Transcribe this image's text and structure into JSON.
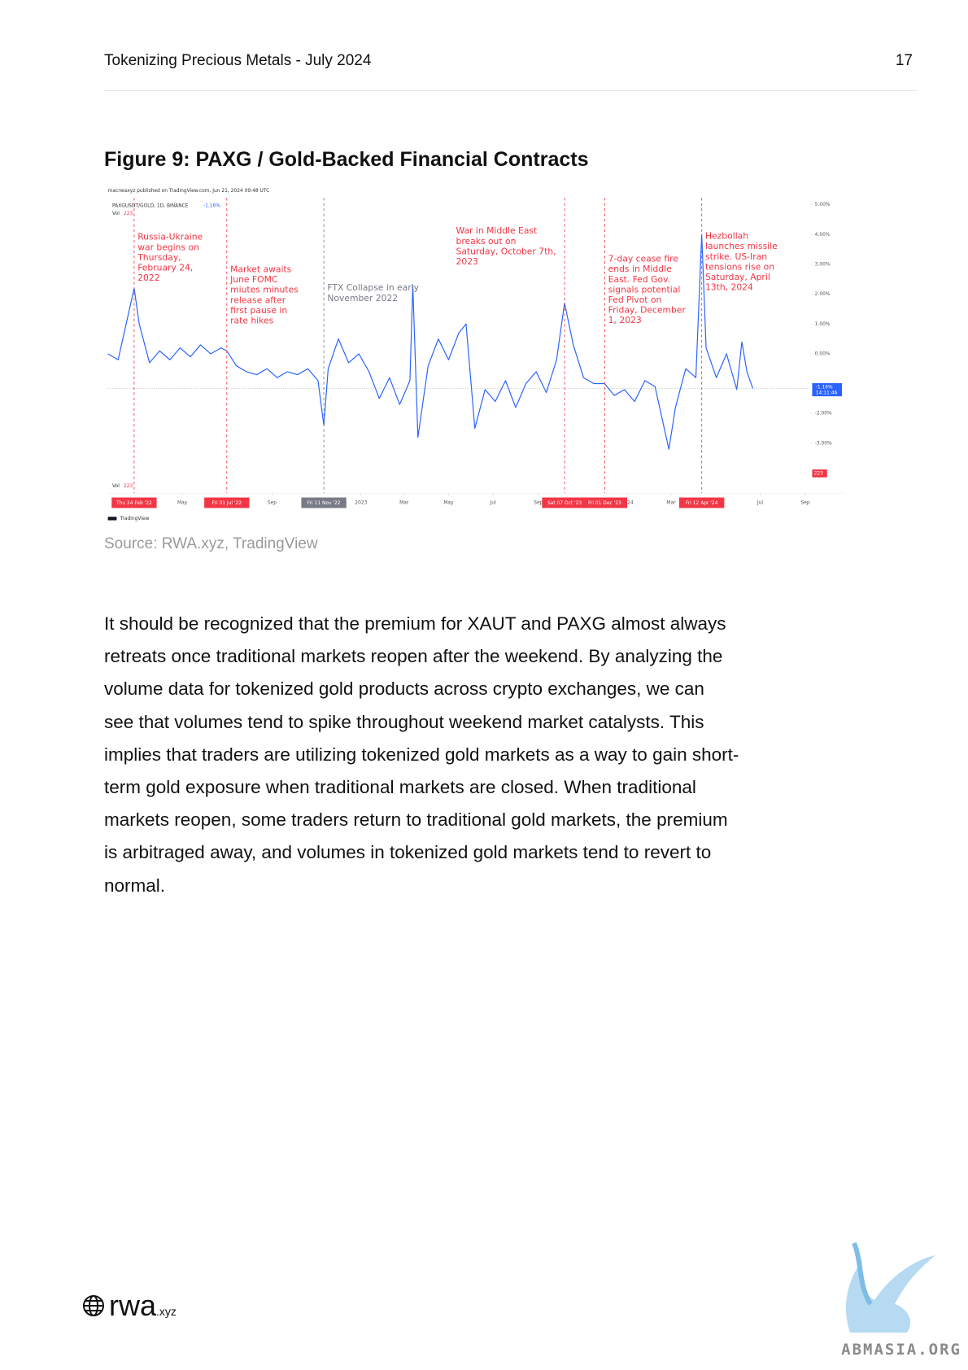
{
  "header": {
    "title": "Tokenizing Precious Metals - July 2024",
    "page": "17"
  },
  "figure": {
    "title": "Figure 9: PAXG / Gold-Backed Financial Contracts",
    "source": "Source: RWA.xyz, TradingView"
  },
  "chart_data": {
    "type": "line",
    "publisher": "macrwaxyz published on TradingView.com, Jun 21, 2024 09:48 UTC",
    "symbol": "PAXGUSDT/GOLD, 1D, BINANCE",
    "last_value_label": "-1.16%",
    "countdown": "14:11:46",
    "volume_label": "Vol",
    "volume_value": "223",
    "brand": "TradingView",
    "series": [
      {
        "name": "PAXGUSDT/GOLD",
        "color": "#2962ff",
        "x": [
          "2022-01-19",
          "2022-02-02",
          "2022-02-24",
          "2022-03-03",
          "2022-03-17",
          "2022-03-31",
          "2022-04-14",
          "2022-04-28",
          "2022-05-12",
          "2022-05-26",
          "2022-06-09",
          "2022-06-23",
          "2022-07-01",
          "2022-07-14",
          "2022-07-28",
          "2022-08-11",
          "2022-08-25",
          "2022-09-08",
          "2022-09-22",
          "2022-10-06",
          "2022-10-20",
          "2022-11-03",
          "2022-11-11",
          "2022-11-17",
          "2022-12-01",
          "2022-12-15",
          "2022-12-29",
          "2023-01-12",
          "2023-01-26",
          "2023-02-09",
          "2023-02-23",
          "2023-03-09",
          "2023-03-13",
          "2023-03-20",
          "2023-04-03",
          "2023-04-17",
          "2023-05-01",
          "2023-05-15",
          "2023-05-25",
          "2023-06-06",
          "2023-06-20",
          "2023-07-04",
          "2023-07-18",
          "2023-08-01",
          "2023-08-15",
          "2023-08-29",
          "2023-09-12",
          "2023-09-26",
          "2023-10-07",
          "2023-10-19",
          "2023-11-02",
          "2023-11-16",
          "2023-12-01",
          "2023-12-14",
          "2023-12-28",
          "2024-01-11",
          "2024-01-25",
          "2024-02-08",
          "2024-02-27",
          "2024-03-07",
          "2024-03-21",
          "2024-04-04",
          "2024-04-12",
          "2024-04-18",
          "2024-05-02",
          "2024-05-16",
          "2024-05-30",
          "2024-06-06",
          "2024-06-13",
          "2024-06-21"
        ],
        "values": [
          0.0,
          -0.2,
          2.2,
          1.0,
          -0.3,
          0.1,
          -0.2,
          0.2,
          -0.1,
          0.3,
          0.0,
          0.2,
          0.1,
          -0.4,
          -0.6,
          -0.7,
          -0.5,
          -0.8,
          -0.6,
          -0.7,
          -0.5,
          -0.9,
          -2.4,
          -0.5,
          0.5,
          -0.3,
          0.0,
          -0.6,
          -1.5,
          -0.8,
          -1.7,
          -0.9,
          2.3,
          -2.8,
          -0.4,
          0.5,
          -0.2,
          0.7,
          1.0,
          -2.5,
          -1.2,
          -1.6,
          -0.9,
          -1.8,
          -1.0,
          -0.6,
          -1.3,
          -0.2,
          1.7,
          0.3,
          -0.8,
          -1.0,
          -1.0,
          -1.4,
          -1.2,
          -1.6,
          -0.9,
          -1.1,
          -3.2,
          -1.8,
          -0.5,
          -0.8,
          4.0,
          0.2,
          -0.8,
          0.0,
          -1.2,
          0.4,
          -0.6,
          -1.16
        ]
      }
    ],
    "xlim": [
      "2022-01-19",
      "2024-09-08"
    ],
    "xticks": [
      {
        "value": "2022-05-01",
        "label": "May"
      },
      {
        "value": "2022-09-01",
        "label": "Sep"
      },
      {
        "value": "2023-01-01",
        "label": "2023"
      },
      {
        "value": "2023-03-01",
        "label": "Mar"
      },
      {
        "value": "2023-05-01",
        "label": "May"
      },
      {
        "value": "2023-07-01",
        "label": "Jul"
      },
      {
        "value": "2023-09-01",
        "label": "Sep"
      },
      {
        "value": "2024-01-01",
        "label": "2024"
      },
      {
        "value": "2024-03-01",
        "label": "Mar"
      },
      {
        "value": "2024-07-01",
        "label": "Jul"
      },
      {
        "value": "2024-09-01",
        "label": "Sep"
      }
    ],
    "ylim": [
      -4.35,
      5.26
    ],
    "yticks": [
      {
        "value": 5,
        "label": "5.00%"
      },
      {
        "value": 4,
        "label": "4.00%"
      },
      {
        "value": 3,
        "label": "3.00%"
      },
      {
        "value": 2,
        "label": "2.00%"
      },
      {
        "value": 1,
        "label": "1.00%"
      },
      {
        "value": 0,
        "label": "0.00%"
      },
      {
        "value": -2,
        "label": "-2.00%"
      },
      {
        "value": -3,
        "label": "-3.00%"
      }
    ],
    "events": [
      {
        "date": "2022-02-24",
        "label": "Thu 24 Feb '22",
        "color": "#f23645",
        "lines": [
          "Russia-Ukraine",
          "war begins on",
          "Thursday,",
          "February 24,",
          "2022"
        ]
      },
      {
        "date": "2022-07-01",
        "label": "Fri 01 Jul '22",
        "color": "#f23645",
        "lines": [
          "Market awaits",
          "June FOMC",
          "miutes minutes",
          "release after",
          "first pause in",
          "rate hikes"
        ]
      },
      {
        "date": "2022-11-11",
        "label": "Fri 11 Nov '22",
        "color": "#787b86",
        "lines": [
          "FTX Collapse in early",
          "November 2022"
        ]
      },
      {
        "date": "2023-10-07",
        "label": "Sat 07 Oct '23",
        "color": "#f23645",
        "lines": [
          "War in Middle East",
          "breaks out on",
          "Saturday, October 7th,",
          "2023"
        ]
      },
      {
        "date": "2023-12-01",
        "label": "Fri 01 Dec '23",
        "color": "#f23645",
        "lines": [
          "7-day cease fire",
          "ends in Middle",
          "East. Fed Gov.",
          "signals potential",
          "Fed Pivot on",
          "Friday, December",
          "1, 2023"
        ]
      },
      {
        "date": "2024-04-12",
        "label": "Fri 12 Apr '24",
        "color": "#f23645",
        "lines": [
          "Hezbollah",
          "launches missile",
          "strike. US-Iran",
          "tensions rise on",
          "Saturday, April",
          "13th, 2024"
        ]
      }
    ]
  },
  "body": {
    "lines": [
      "It should be recognized that the premium for XAUT and PAXG almost always",
      "retreats once traditional markets reopen after the weekend. By analyzing the",
      "volume data for tokenized gold products across crypto exchanges, we can",
      "see that volumes tend to spike throughout weekend market catalysts. This",
      "implies that traders are utilizing tokenized gold markets as a way to gain short-",
      "term gold exposure when traditional markets are closed. When traditional",
      "markets reopen, some traders return to traditional gold markets, the premium",
      "is arbitraged away, and volumes in tokenized gold markets tend to revert to",
      "normal."
    ]
  },
  "footer": {
    "logo": "rwa",
    "logo_suffix": ".xyz",
    "watermark": "ABMASIA.ORG"
  }
}
